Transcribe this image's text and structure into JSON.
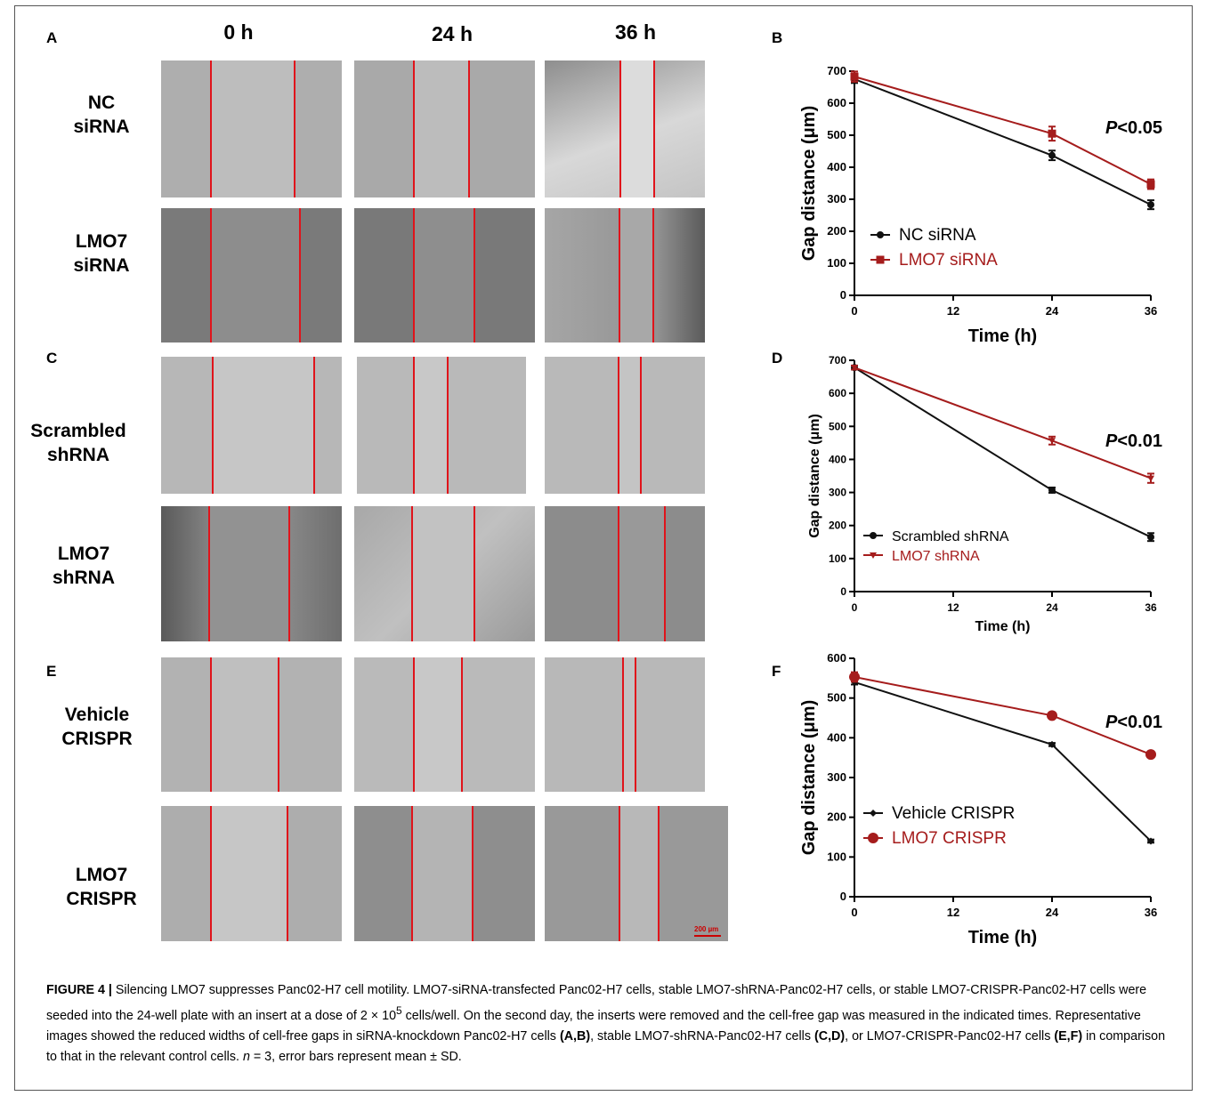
{
  "panels_left": {
    "a_label": "A",
    "c_label": "C",
    "e_label": "E",
    "col_headers": [
      "0 h",
      "24 h",
      "36 h"
    ],
    "rows": [
      {
        "line1": "NC",
        "line2": "siRNA"
      },
      {
        "line1": "LMO7",
        "line2": "siRNA"
      },
      {
        "line1": "Scrambled",
        "line2": "shRNA"
      },
      {
        "line1": "LMO7",
        "line2": "shRNA"
      },
      {
        "line1": "Vehicle",
        "line2": "CRISPR"
      },
      {
        "line1": "LMO7",
        "line2": "CRISPR"
      }
    ],
    "scale_bar": "200 µm"
  },
  "chart_data": [
    {
      "panel": "B",
      "type": "line",
      "x": [
        0,
        24,
        36
      ],
      "series": [
        {
          "name": "NC siRNA",
          "values": [
            675,
            437,
            283
          ],
          "err": [
            12,
            15,
            14
          ],
          "color": "#111111",
          "marker": "circle"
        },
        {
          "name": "LMO7 siRNA",
          "values": [
            683,
            505,
            347
          ],
          "err": [
            16,
            22,
            15
          ],
          "color": "#a51c1c",
          "marker": "square"
        }
      ],
      "xlabel": "Time (h)",
      "ylabel": "Gap distance (μm)",
      "xticks": [
        0,
        12,
        24,
        36
      ],
      "yticks": [
        0,
        100,
        200,
        300,
        400,
        500,
        600,
        700
      ],
      "xlim": [
        0,
        36
      ],
      "ylim": [
        0,
        700
      ],
      "annotation": "P<0.05",
      "legend": "bottom-left"
    },
    {
      "panel": "D",
      "type": "line",
      "x": [
        0,
        24,
        36
      ],
      "series": [
        {
          "name": "Scrambled shRNA",
          "values": [
            678,
            307,
            165
          ],
          "err": [
            6,
            8,
            12
          ],
          "color": "#111111",
          "marker": "circle"
        },
        {
          "name": "LMO7 shRNA",
          "values": [
            678,
            457,
            343
          ],
          "err": [
            6,
            12,
            14
          ],
          "color": "#a51c1c",
          "marker": "triangle-down"
        }
      ],
      "xlabel": "Time (h)",
      "ylabel": "Gap distance (μm)",
      "xticks": [
        0,
        12,
        24,
        36
      ],
      "yticks": [
        0,
        100,
        200,
        300,
        400,
        500,
        600,
        700
      ],
      "xlim": [
        0,
        36
      ],
      "ylim": [
        0,
        700
      ],
      "annotation": "P<0.01",
      "legend": "bottom-left"
    },
    {
      "panel": "F",
      "type": "line",
      "x": [
        0,
        24,
        36
      ],
      "series": [
        {
          "name": "Vehicle CRISPR",
          "values": [
            540,
            383,
            140
          ],
          "err": [
            6,
            4,
            4
          ],
          "color": "#111111",
          "marker": "diamond"
        },
        {
          "name": "LMO7 CRISPR",
          "values": [
            553,
            456,
            358
          ],
          "err": [
            12,
            6,
            6
          ],
          "color": "#a51c1c",
          "marker": "circle-large"
        }
      ],
      "xlabel": "Time (h)",
      "ylabel": "Gap distance (μm)",
      "xticks": [
        0,
        12,
        24,
        36
      ],
      "yticks": [
        0,
        100,
        200,
        300,
        400,
        500,
        600
      ],
      "xlim": [
        0,
        36
      ],
      "ylim": [
        0,
        600
      ],
      "annotation": "P<0.01",
      "legend": "bottom-left"
    }
  ],
  "caption": {
    "fig": "FIGURE 4 |",
    "t1": " Silencing LMO7 suppresses Panc02-H7 cell motility. LMO7-siRNA-transfected Panc02-H7 cells, stable LMO7-shRNA-Panc02-H7 cells, or stable LMO7-CRISPR-Panc02-H7 cells were seeded into the 24-well plate with an insert at a dose of 2 × 10",
    "sup": "5",
    "t2": " cells/well. On the second day, the inserts were removed and the cell-free gap was measured in the indicated times. Representative images showed the reduced widths of cell-free gaps in siRNA-knockdown Panc02-H7 cells ",
    "ref1": "(A,B)",
    "t3": ", stable LMO7-shRNA-Panc02-H7 cells ",
    "ref2": "(C,D)",
    "t4": ", or LMO7-CRISPR-Panc02-H7 cells ",
    "ref3": "(E,F)",
    "t5": " in comparison to that in the relevant control cells. ",
    "n": "n",
    "t6": " = 3, error bars represent mean ± SD."
  }
}
